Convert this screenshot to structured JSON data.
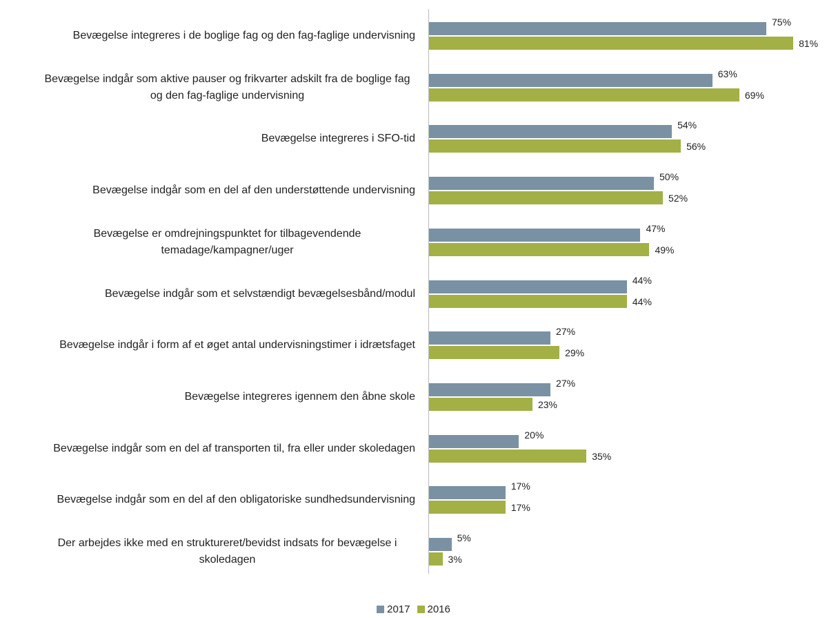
{
  "chart_data": {
    "type": "bar",
    "orientation": "horizontal",
    "categories": [
      "Bevægelse integreres i de boglige fag og den fag-faglige undervisning",
      "Bevægelse indgår som aktive pauser og frikvarter adskilt fra de boglige fag og den fag-faglige undervisning",
      "Bevægelse integreres i SFO-tid",
      "Bevægelse indgår som en del af den understøttende undervisning",
      "Bevægelse er omdrejningspunktet for tilbagevendende temadage/kampagner/uger",
      "Bevægelse indgår som et selvstændigt bevægelsesbånd/modul",
      "Bevægelse indgår i form af et øget antal undervisningstimer i idrætsfaget",
      "Bevægelse integreres igennem den åbne skole",
      "Bevægelse indgår som en del af transporten til, fra eller under skoledagen",
      "Bevægelse indgår som en del af den obligatoriske sundhedsundervisning",
      "Der arbejdes ikke med en struktureret/bevidst indsats for bevægelse i skoledagen"
    ],
    "series": [
      {
        "name": "2017",
        "color": "#7a91a4",
        "values": [
          75,
          63,
          54,
          50,
          47,
          44,
          27,
          27,
          20,
          17,
          5
        ],
        "value_labels": [
          "75%",
          "63%",
          "54%",
          "50%",
          "47%",
          "44%",
          "27%",
          "27%",
          "20%",
          "17%",
          "5%"
        ]
      },
      {
        "name": "2016",
        "color": "#a3b045",
        "values": [
          81,
          69,
          56,
          52,
          49,
          44,
          29,
          23,
          35,
          17,
          3
        ],
        "value_labels": [
          "81%",
          "69%",
          "56%",
          "52%",
          "49%",
          "44%",
          "29%",
          "23%",
          "35%",
          "17%",
          "3%"
        ]
      }
    ],
    "legend": "bottom"
  }
}
